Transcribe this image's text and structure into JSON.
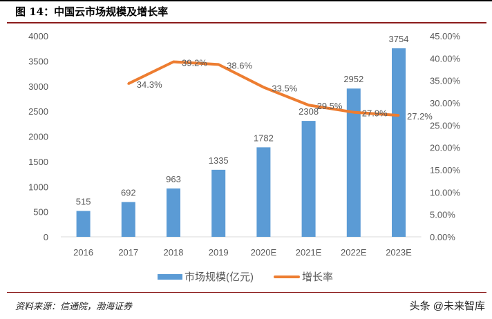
{
  "header": {
    "title": "图 14：中国云市场规模及增长率"
  },
  "footer": {
    "source": "资料来源：信通院，渤海证券",
    "watermark": "头条 @未来智库"
  },
  "colors": {
    "bar": "#5b9bd5",
    "line": "#ed7d31",
    "rule": "#8b1a1a"
  },
  "chart_data": {
    "type": "bar+line",
    "title": "中国云市场规模及增长率",
    "categories": [
      "2016",
      "2017",
      "2018",
      "2019",
      "2020E",
      "2021E",
      "2022E",
      "2023E"
    ],
    "series": [
      {
        "name": "市场规模(亿元)",
        "type": "bar",
        "axis": "left",
        "values": [
          515,
          692,
          963,
          1335,
          1782,
          2308,
          2952,
          3754
        ],
        "labels": [
          "515",
          "692",
          "963",
          "1335",
          "1782",
          "2308",
          "2952",
          "3754"
        ]
      },
      {
        "name": "增长率",
        "type": "line",
        "axis": "right",
        "values": [
          null,
          34.3,
          39.2,
          38.6,
          33.5,
          29.5,
          27.9,
          27.2
        ],
        "labels": [
          "",
          "34.3%",
          "39.2%",
          "38.6%",
          "33.5%",
          "29.5%",
          "27.9%",
          "27.2%"
        ]
      }
    ],
    "left_axis": {
      "range": [
        0,
        4000
      ],
      "ticks": [
        "0",
        "500",
        "1000",
        "1500",
        "2000",
        "2500",
        "3000",
        "3500",
        "4000"
      ]
    },
    "right_axis": {
      "range": [
        0,
        45
      ],
      "ticks": [
        "0.00%",
        "5.00%",
        "10.00%",
        "15.00%",
        "20.00%",
        "25.00%",
        "30.00%",
        "35.00%",
        "40.00%",
        "45.00%"
      ]
    },
    "grid": false,
    "legend": "bottom"
  }
}
